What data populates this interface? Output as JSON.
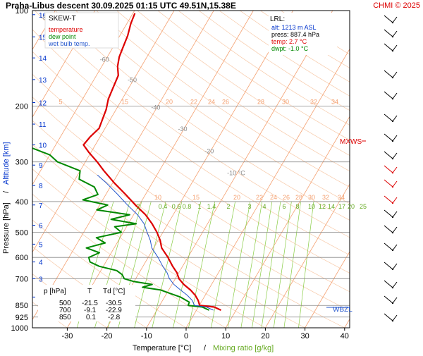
{
  "header": {
    "title": "Praha-Libus   descent   30.09.2025 01:15 UTC   49.51N,15.38E",
    "copyright": "CHMI © 2025"
  },
  "legend": {
    "chart_name": "SKEW-T",
    "temperature": "temperature",
    "dew_point": "dew point",
    "wet_bulb": "wet bulb temp."
  },
  "lrl_box": {
    "label": "LRL:",
    "alt": "alt: 1213 m ASL",
    "press": "press: 887.4 hPa",
    "temp": "temp: 2.7 °C",
    "dwpt": "dwpt: -1.0 °C"
  },
  "table": {
    "headers": [
      "p [hPa]",
      "T",
      "Td [°C]"
    ],
    "rows": [
      [
        "500",
        "-21.5",
        "-30.5"
      ],
      [
        "700",
        "-9.1",
        "-22.9"
      ],
      [
        "850",
        "0.1",
        "-2.8"
      ]
    ]
  },
  "markers": {
    "mxws": "MXWS",
    "wbzl": "WBZL"
  },
  "colors": {
    "temperature": "#dd0000",
    "dew_point": "#008800",
    "wet_bulb": "#2255cc",
    "isotherm": "#f4a070",
    "mixing": "#88cc44",
    "axis_alt": "#0033cc",
    "copyright": "#dd0000"
  },
  "chart_data": {
    "type": "line",
    "title": "Praha-Libus   descent   30.09.2025 01:15 UTC   49.51N,15.38E",
    "xlabel": "Temperature [°C]",
    "xlabel_sep": "/",
    "xlabel2": "Mixing ratio [g/kg]",
    "ylabel": "Pressure [hPa]",
    "ylabel_sep": "/",
    "ylabel2": "Altitude [km]",
    "y_scale": "log",
    "xlim": [
      -37,
      43
    ],
    "ylim": [
      1000,
      100
    ],
    "x_ticks": [
      -30,
      -20,
      -10,
      0,
      10,
      20,
      30,
      40
    ],
    "x_tick_labels": [
      "-30",
      "-20",
      "-10",
      "0",
      "10",
      "20",
      "30",
      "40"
    ],
    "pressure_ticks": [
      100,
      200,
      300,
      400,
      500,
      600,
      700,
      850,
      925,
      1000
    ],
    "pressure_tick_labels": [
      "100",
      "200",
      "300",
      "400",
      "500",
      "600",
      "700",
      "850",
      "925",
      "1000"
    ],
    "altitude_ticks_km": [
      {
        "label": "2",
        "p": 800
      },
      {
        "label": "3",
        "p": 700
      },
      {
        "label": "4",
        "p": 620
      },
      {
        "label": "5",
        "p": 545
      },
      {
        "label": "6",
        "p": 475
      },
      {
        "label": "7",
        "p": 410
      },
      {
        "label": "8",
        "p": 356
      },
      {
        "label": "9",
        "p": 307
      },
      {
        "label": "10",
        "p": 265
      },
      {
        "label": "11",
        "p": 228
      },
      {
        "label": "12",
        "p": 195
      },
      {
        "label": "13",
        "p": 165
      },
      {
        "label": "14",
        "p": 141
      },
      {
        "label": "15",
        "p": 121
      },
      {
        "label": "16",
        "p": 103
      }
    ],
    "isotherm_labels": [
      {
        "label": "-80 °C",
        "p": 107
      },
      {
        "label": "-70",
        "p": 125
      },
      {
        "label": "-60",
        "p": 145
      },
      {
        "label": "-50",
        "p": 168
      },
      {
        "label": "-40",
        "p": 205
      },
      {
        "label": "-30",
        "p": 240
      },
      {
        "label": "-20",
        "p": 282
      },
      {
        "label": "-10 °C",
        "p": 330
      }
    ],
    "mixing_ratio_labels_top": [
      "5",
      "15",
      "20",
      "22",
      "24",
      "26",
      "28",
      "30",
      "32",
      "34"
    ],
    "mixing_ratio_labels_mid": [
      "10",
      "15",
      "20",
      "22",
      "24",
      "26",
      "28",
      "30",
      "32",
      "34"
    ],
    "mixing_ratio_labels_bottom": [
      "2",
      "0.4",
      "0.6",
      "0.8",
      "1",
      "1.4",
      "2",
      "3",
      "4",
      "6",
      "8",
      "10",
      "12",
      "14",
      "17",
      "20",
      "25"
    ],
    "series": [
      {
        "name": "temperature",
        "color": "#dd0000",
        "points": [
          [
            880,
            6.2
          ],
          [
            860,
            4.0
          ],
          [
            850,
            0.1
          ],
          [
            820,
            -1.0
          ],
          [
            790,
            -2.5
          ],
          [
            760,
            -4.5
          ],
          [
            730,
            -7.0
          ],
          [
            700,
            -9.1
          ],
          [
            670,
            -10.5
          ],
          [
            640,
            -12.5
          ],
          [
            600,
            -15.0
          ],
          [
            560,
            -18.0
          ],
          [
            530,
            -19.5
          ],
          [
            500,
            -21.5
          ],
          [
            470,
            -24.0
          ],
          [
            440,
            -27.0
          ],
          [
            410,
            -31.0
          ],
          [
            380,
            -35.0
          ],
          [
            350,
            -39.5
          ],
          [
            320,
            -44.0
          ],
          [
            300,
            -47.0
          ],
          [
            280,
            -50.5
          ],
          [
            265,
            -53.0
          ],
          [
            250,
            -52.5
          ],
          [
            235,
            -51.5
          ],
          [
            220,
            -52.0
          ],
          [
            205,
            -52.5
          ],
          [
            190,
            -53.5
          ],
          [
            175,
            -54.0
          ],
          [
            160,
            -54.5
          ],
          [
            150,
            -56.0
          ],
          [
            140,
            -57.0
          ],
          [
            130,
            -57.5
          ],
          [
            120,
            -58.0
          ],
          [
            110,
            -59.0
          ],
          [
            102,
            -59.5
          ]
        ]
      },
      {
        "name": "dew point",
        "color": "#008800",
        "points": [
          [
            880,
            3.2
          ],
          [
            860,
            1.0
          ],
          [
            850,
            -2.8
          ],
          [
            830,
            -3.0
          ],
          [
            800,
            -6.0
          ],
          [
            780,
            -9.0
          ],
          [
            760,
            -12.0
          ],
          [
            745,
            -17.0
          ],
          [
            730,
            -15.0
          ],
          [
            715,
            -20.0
          ],
          [
            700,
            -22.9
          ],
          [
            680,
            -24.0
          ],
          [
            660,
            -26.0
          ],
          [
            640,
            -31.0
          ],
          [
            620,
            -34.0
          ],
          [
            600,
            -35.0
          ],
          [
            580,
            -33.0
          ],
          [
            560,
            -37.0
          ],
          [
            540,
            -33.0
          ],
          [
            520,
            -36.0
          ],
          [
            500,
            -30.5
          ],
          [
            480,
            -33.0
          ],
          [
            470,
            -28.0
          ],
          [
            455,
            -35.0
          ],
          [
            440,
            -31.0
          ],
          [
            425,
            -40.0
          ],
          [
            410,
            -38.0
          ],
          [
            395,
            -45.0
          ],
          [
            380,
            -42.0
          ],
          [
            360,
            -44.0
          ],
          [
            340,
            -49.0
          ],
          [
            320,
            -50.0
          ],
          [
            300,
            -57.0
          ],
          [
            285,
            -60.0
          ],
          [
            270,
            -66.0
          ],
          [
            255,
            -70.0
          ],
          [
            240,
            -76.0
          ],
          [
            225,
            -78.0
          ],
          [
            210,
            -75.0
          ],
          [
            195,
            -78.0
          ],
          [
            180,
            -78.0
          ],
          [
            165,
            -77.5
          ],
          [
            150,
            -79.0
          ],
          [
            140,
            -80.0
          ],
          [
            130,
            -81.0
          ],
          [
            120,
            -84.0
          ],
          [
            110,
            -85.0
          ],
          [
            102,
            -86.0
          ]
        ]
      },
      {
        "name": "wet bulb temp.",
        "color": "#2255cc",
        "points": [
          [
            880,
            4.3
          ],
          [
            860,
            2.0
          ],
          [
            850,
            -1.2
          ],
          [
            820,
            -2.5
          ],
          [
            790,
            -4.5
          ],
          [
            760,
            -7.0
          ],
          [
            730,
            -9.5
          ],
          [
            700,
            -11.5
          ],
          [
            670,
            -13.0
          ],
          [
            640,
            -15.0
          ],
          [
            600,
            -17.5
          ],
          [
            560,
            -20.5
          ],
          [
            530,
            -22.0
          ],
          [
            500,
            -24.0
          ],
          [
            470,
            -26.0
          ],
          [
            440,
            -29.0
          ],
          [
            410,
            -33.0
          ],
          [
            380,
            -37.0
          ],
          [
            350,
            -41.5
          ],
          [
            330,
            -45.0
          ]
        ]
      }
    ]
  }
}
